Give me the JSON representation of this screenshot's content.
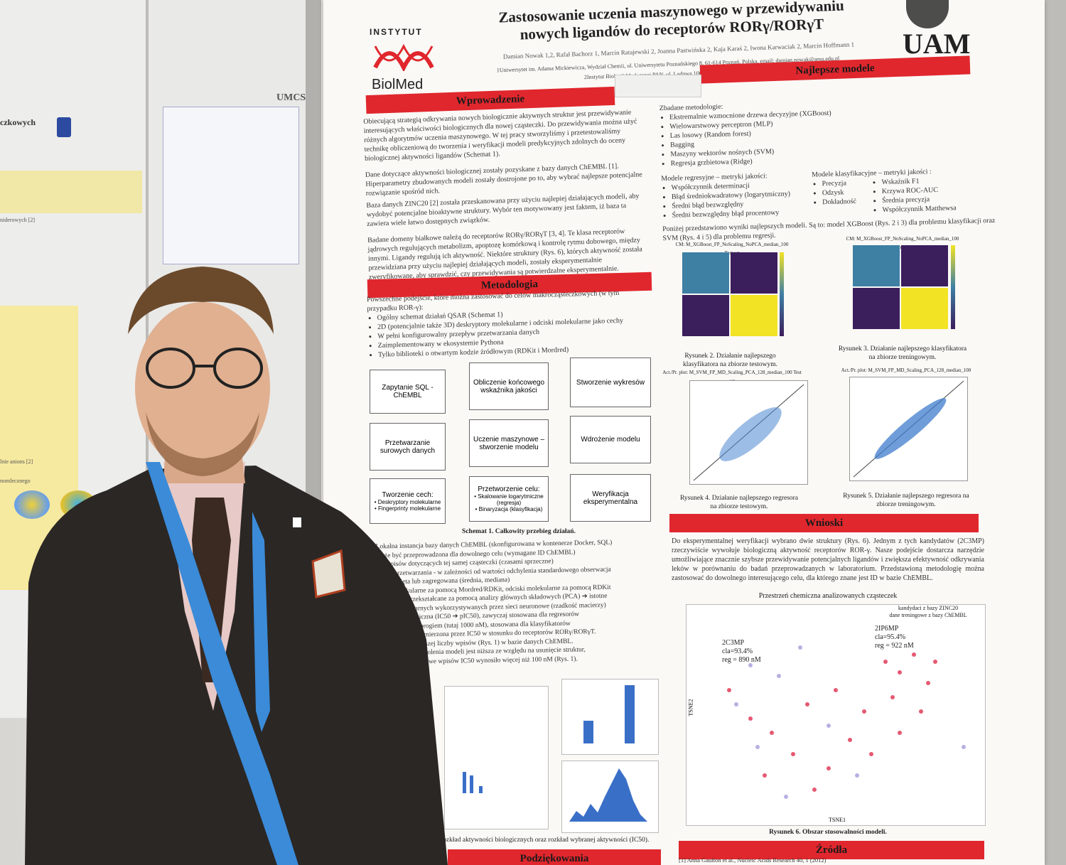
{
  "left_board": {
    "heading": "czkowych",
    "section_a": "niderowych [2]",
    "section_b": "lnie anions [2]",
    "section_c": "nomlecznego"
  },
  "mid_board": {
    "logo": "UMCS"
  },
  "poster": {
    "title_line1": "Zastosowanie uczenia maszynowego w przewidywaniu",
    "title_line2": "nowych ligandów do receptorów RORγ/RORγT",
    "authors": "Damian Nowak 1,2, Rafał Bachorz 1, Marcin Ratajewski 2, Joanna Pastwińska 2, Kaja Karaś 2, Iwona Karwaciak 2, Marcin Hoffmann 1",
    "affiliation1": "1Uniwersytet im. Adama Mickiewicza, Wydział Chemii, ul. Uniwersytetu Poznańskiego 8, 61-614 Poznań, Polska, email: damian.nowak@amu.edu.pl",
    "affiliation2": "2Instytut Biologii Medycznej PAN, ul. Lodowa 106, 93-232 Łódź, Polska",
    "logo_left_top": "INSTYTUT",
    "logo_left_bottom": "BiolMed",
    "logo_right": "UAM",
    "sections": {
      "intro": "Wprowadzenie",
      "method": "Metodologia",
      "best": "Najlepsze modele",
      "conclusions": "Wnioski",
      "sources": "Źródła",
      "thanks": "Podziękowania"
    },
    "intro_p1": "Obiecującą strategią odkrywania nowych biologicznie aktywnych struktur jest przewidywanie interesujących właściwości biologicznych dla nowej cząsteczki. Do przewidywania można użyć różnych algorytmów uczenia maszynowego. W tej pracy stworzyliśmy i przetestowaliśmy technikę obliczeniową do tworzenia i weryfikacji modeli predykcyjnych zdolnych do oceny biologicznej aktywności ligandów (Schemat 1).",
    "intro_p2": "Dane dotyczące aktywności biologicznej zostały pozyskane z bazy danych ChEMBL [1]. Hiperparametry zbudowanych modeli zostały dostrojone po to, aby wybrać najlepsze potencjalne rozwiązanie spośród nich.",
    "intro_p3": "Baza danych ZINC20 [2] została przeskanowana przy użyciu najlepiej działających modeli, aby wydobyć potencjalne bioaktywne struktury. Wybór ten motywowany jest faktem, iż baza ta zawiera wiele łatwo dostępnych związków.",
    "intro_p4": "Badane domeny białkowe należą do receptorów RORγ/RORγT [3, 4]. Te klasa receptorów jądrowych regulujących metabolizm, apoptozę komórkową i kontrolę rytmu dobowego, między innymi. Ligandy regulują ich aktywność. Niektóre struktury (Rys. 6), których aktywność została przewidziana przy użyciu najlepiej działających modeli, zostały eksperymentalnie zweryfikowane, aby sprawdzić, czy przewidywania są potwierdzalne eksperymentalnie.",
    "method_p": "Powszechne podejście, które można zastosować do celów makrocząsteczkowych (w tym przypadku ROR-γ):",
    "method_items": [
      "Ogólny schemat działań QSAR (Schemat 1)",
      "2D (potencjalnie także 3D) deskryptory molekularne i odciski molekularne jako cechy",
      "W pełni konfigurowalny przepływ przetwarzania danych",
      "Zaimplementowany w ekosystemie Pythona",
      "Tylko biblioteki o otwartym kodzie źródłowym (RDKit i Mordred)"
    ],
    "flow": {
      "b1": "Zapytanie SQL - ChEMBL",
      "b2": "Obliczenie końcowego wskaźnika jakości",
      "b3": "Stworzenie wykresów",
      "b4": "Przetwarzanie surowych danych",
      "b5": "Uczenie maszynowe – stworzenie modelu",
      "b6": "Wdrożenie modelu",
      "b7_title": "Tworzenie cech:",
      "b7_i1": "• Deskryptory molekularne",
      "b7_i2": "• Fingerprinty molekularne",
      "b8_title": "Przetworzenie celu:",
      "b8_i1": "• Skalowanie logarytmiczne (regresja)",
      "b8_i2": "• Binaryzacja (klasyfikacja)",
      "b9": "Weryfikacja eksperymentalna",
      "caption": "Schemat 1. Całkowity przebieg działań."
    },
    "method_lines": [
      "Lokalna instancja bazy danych ChEMBL (skonfigurowana w kontenerze Docker, SQL)",
      "może być przeprowadzona dla dowolnego celu (wymagane ID ChEMBL)",
      "ele wpisów dotyczących tej samej cząsteczki (czasami sprzeczne)",
      "ategia przetwarzania - w zależności od wartości odchylenia standardowego obserwacja",
      "być usunięta lub zagregowana (średnia, mediana)",
      "ptory molekularne za pomocą Mordred/RDKit, odciski molekularne za pomocą RDKit",
      "ntrogą być przekształcane za pomocą analizy głównych składowych (PCA) ➔ istotne",
      "sków molekularnych wykorzystywanych przez sieci neuronowe (rzadkość macierzy)",
      "macja logarytmiczna (IC50 ➔ pIC50), zawyczaj stosowana dla regresorów",
      "a z określonym progiem (tutaj 1000 nM), stosowana dla klasyfikatorów",
      "na docelowa jest mierzona przez IC50 w stosunku do receptorów RORγ/RORγT.",
      "ywnika z największej liczby wpisów (Rys. 1) w bazie danych ChEMBL.",
      "używanych do szkolenia modeli jest niższa ze względu na usunięcie struktur,",
      "chylenie standardowe wpisów IC50 wynosiło więcej niż 100 nM (Rys. 1)."
    ],
    "fig1_caption": "rozkład aktywności biologicznych oraz rozkład wybranej aktywności (IC50).",
    "best_intro": "Zbadane metodologie:",
    "best_items": [
      "Ekstremalnie wzmocnione drzewa decyzyjne (XGBoost)",
      "Wielowarstwowy perceptron (MLP)",
      "Las losowy (Random forest)",
      "Bagging",
      "Maszyny wektorów nośnych (SVM)",
      "Regresja grzbietowa (Ridge)"
    ],
    "reg_title": "Modele regresyjne – metryki jakości:",
    "reg_items": [
      "Współczynnik determinacji",
      "Błąd średniokwadratowy (logarytmiczny)",
      "Średni błąd bezwzględny",
      "Średni bezwzględny błąd procentowy"
    ],
    "cls_title": "Modele klasyfikacyjne – metryki jakości :",
    "cls_left": [
      "Precyzja",
      "Odzysk",
      "Dokładność"
    ],
    "cls_right": [
      "Wskaźnik F1",
      "Krzywa ROC-AUC",
      "Średnia precyzja",
      "Współczynnik Matthewsa"
    ],
    "best_result": "Poniżej przedstawiono wyniki najlepszych modeli. Są to: model XGBoost (Rys. 2 i 3) dla problemu klasyfikacji oraz SVM (Rys. 4 i 5) dla problemu regresji.",
    "fig2_title": "CM: M_XGBoost_FP_NoScaling_NoPCA_median_100 Test set",
    "fig3_title": "CM: M_XGBoost_FP_NoScaling_NoPCA_median_100 Training set",
    "fig2_caption": "Rysunek 2. Działanie najlepszego klasyfikatora na zbiorze testowym.",
    "fig3_caption": "Rysunek 3. Działanie najlepszego klasyfikatora na zbiorze treningowym.",
    "fig4_title": "Act./Pr. plot: M_SVM_FP_MD_Scaling_PCA_128_median_100 Test set",
    "fig5_title": "Act./Pr. plot: M_SVM_FP_MD_Scaling_PCA_128_median_100 Training set",
    "fig4_caption": "Rysunek 4. Działanie najlepszego regresora na zbiorze testowym.",
    "fig5_caption": "Rysunek 5. Działanie najlepszego regresora na zbiorze treningowym.",
    "conclusions_text": "Do eksperymentalnej weryfikacji wybrano dwie struktury (Rys. 6). Jednym z tych kandydatów (2C3MP) rzeczywiście wywołuje biologiczną aktywność receptorów ROR-γ. Nasze podejście dostarcza narzędzie umożliwiające znacznie szybsze przewidywanie potencjalnych ligandów i zwiększa efektywność odkrywania leków w porównaniu do badań przeprowadzanych w laboratorium. Przedstawioną metodologię można zastosować do dowolnego interesującego celu, dla którego znane jest ID w bazie ChEMBL.",
    "fig6_title": "Przestrzeń chemiczna analizowanych cząsteczek",
    "fig6_legend1": "kandydaci z bazy ZINC20",
    "fig6_legend2": "dane treningowe z bazy ChEMBL",
    "mol1_name": "2C3MP",
    "mol1_cla": "cla=93.4%",
    "mol1_reg": "reg = 890 nM",
    "mol2_name": "2IP6MP",
    "mol2_cla": "cla=95.4%",
    "mol2_reg": "reg = 922 nM",
    "fig6_xlabel": "TSNE1",
    "fig6_ylabel": "TSNE2",
    "fig6_caption": "Rysunek 6. Obszar stosowalności modeli.",
    "ref1": "[1] Anna Gaulton et al., Nucleic Acids Research 40, 1 (2012)"
  },
  "colors": {
    "section_red": "#e0272d",
    "suit": "#2b2725",
    "lanyard": "#3b8bd8"
  },
  "icons": [
    "lanyard-badge",
    "pocket-square",
    "lapel-pin"
  ]
}
